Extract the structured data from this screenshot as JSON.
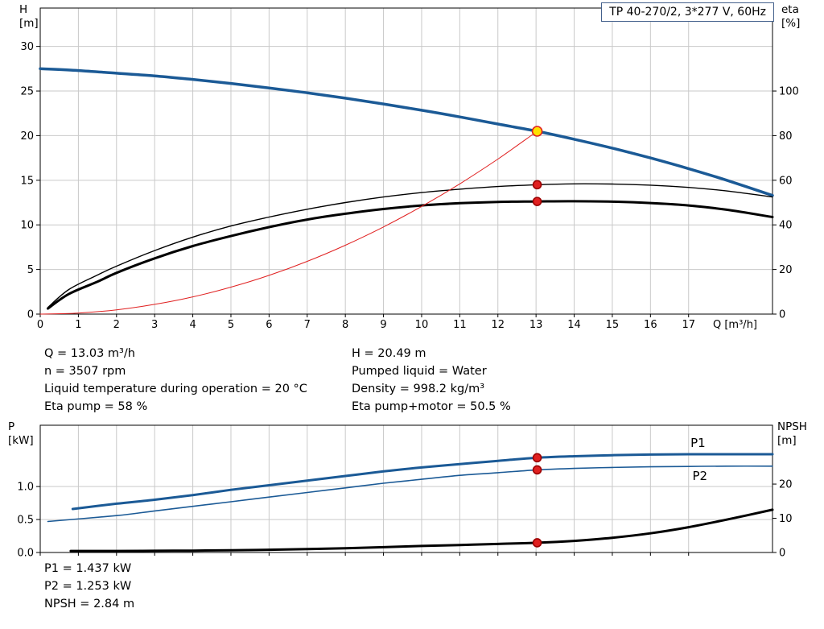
{
  "title_box": "TP 40-270/2, 3*277 V, 60Hz",
  "info": {
    "operating_point": {
      "q": "Q = 13.03 m³/h",
      "n": "n = 3507 rpm",
      "liquid_temp": "Liquid temperature during operation = 20 °C",
      "eta_pump": "Eta pump = 58 %",
      "h": "H = 20.49 m",
      "pumped_liquid": "Pumped liquid = Water",
      "density": "Density = 998.2 kg/m³",
      "eta_pump_motor": "Eta pump+motor = 50.5 %"
    },
    "power": {
      "p1": "P1 = 1.437 kW",
      "p2": "P2 = 1.253 kW",
      "npsh": "NPSH = 2.84 m"
    }
  },
  "chart_data": [
    {
      "type": "line",
      "title": "TP 40-270/2, 3*277 V, 60Hz",
      "x": {
        "label": "Q [m³/h]",
        "min": 0,
        "max": 19.2,
        "ticks": [
          0,
          1,
          2,
          3,
          4,
          5,
          6,
          7,
          8,
          9,
          10,
          11,
          12,
          13,
          14,
          15,
          16,
          17
        ],
        "tick_labels": [
          "0",
          "1",
          "2",
          "3",
          "4",
          "5",
          "6",
          "7",
          "8",
          "9",
          "10",
          "11",
          "12",
          "13",
          "14",
          "15",
          "16",
          "17"
        ]
      },
      "y_left": {
        "name": "H",
        "unit": "[m]",
        "min": 0,
        "max": 34.3,
        "ticks": [
          0,
          5,
          10,
          15,
          20,
          25,
          30
        ],
        "tick_labels": [
          "0",
          "5",
          "10",
          "15",
          "20",
          "25",
          "30"
        ]
      },
      "y_right": {
        "name": "eta",
        "unit": "[%]",
        "min": 0,
        "max": 137.2,
        "ticks": [
          0,
          20,
          40,
          60,
          80,
          100
        ],
        "tick_labels": [
          "0",
          "20",
          "40",
          "60",
          "80",
          "100"
        ]
      },
      "grid": true,
      "series": [
        {
          "id": "head-curve",
          "name": "H",
          "axis": "left",
          "color": "#1b5a96",
          "width": 3.5,
          "points": [
            [
              0,
              27.5
            ],
            [
              1,
              27.3
            ],
            [
              2,
              27.0
            ],
            [
              3,
              26.7
            ],
            [
              4,
              26.3
            ],
            [
              5,
              25.85
            ],
            [
              6,
              25.35
            ],
            [
              7,
              24.8
            ],
            [
              8,
              24.2
            ],
            [
              9,
              23.55
            ],
            [
              10,
              22.85
            ],
            [
              11,
              22.1
            ],
            [
              12,
              21.3
            ],
            [
              13.03,
              20.49
            ],
            [
              14,
              19.6
            ],
            [
              15,
              18.6
            ],
            [
              16,
              17.5
            ],
            [
              17,
              16.3
            ],
            [
              18,
              15.0
            ],
            [
              19.2,
              13.3
            ]
          ]
        },
        {
          "id": "eta-pump-curve",
          "name": "Eta pump",
          "axis": "right",
          "color": "#000000",
          "width": 1.4,
          "points": [
            [
              0.2,
              3
            ],
            [
              0.75,
              11
            ],
            [
              1.5,
              17.5
            ],
            [
              2,
              21.5
            ],
            [
              3,
              28.5
            ],
            [
              4,
              34.5
            ],
            [
              5,
              39.5
            ],
            [
              6,
              43.5
            ],
            [
              7,
              47
            ],
            [
              8,
              50
            ],
            [
              9,
              52.5
            ],
            [
              10,
              54.5
            ],
            [
              11,
              56
            ],
            [
              12,
              57.2
            ],
            [
              13.03,
              58
            ],
            [
              14,
              58.4
            ],
            [
              15,
              58.3
            ],
            [
              16,
              57.8
            ],
            [
              17,
              56.8
            ],
            [
              18,
              55.2
            ],
            [
              19.2,
              52.5
            ]
          ]
        },
        {
          "id": "eta-pump-motor-curve",
          "name": "Eta pump+motor",
          "axis": "right",
          "color": "#000000",
          "width": 3,
          "points": [
            [
              0.2,
              2.5
            ],
            [
              0.75,
              9
            ],
            [
              1.5,
              14.5
            ],
            [
              2,
              18.5
            ],
            [
              3,
              25
            ],
            [
              4,
              30.5
            ],
            [
              5,
              35
            ],
            [
              6,
              39
            ],
            [
              7,
              42.4
            ],
            [
              8,
              45
            ],
            [
              9,
              47.1
            ],
            [
              10,
              48.7
            ],
            [
              11,
              49.7
            ],
            [
              12,
              50.3
            ],
            [
              13.03,
              50.5
            ],
            [
              14,
              50.6
            ],
            [
              15,
              50.4
            ],
            [
              16,
              49.8
            ],
            [
              17,
              48.7
            ],
            [
              18,
              46.8
            ],
            [
              19.2,
              43.5
            ]
          ]
        },
        {
          "id": "system-curve",
          "name": "System curve",
          "axis": "left",
          "color": "#e02020",
          "width": 1,
          "points": [
            [
              0,
              0
            ],
            [
              1,
              0.12
            ],
            [
              2,
              0.48
            ],
            [
              3,
              1.09
            ],
            [
              4,
              1.93
            ],
            [
              5,
              3.02
            ],
            [
              6,
              4.34
            ],
            [
              7,
              5.91
            ],
            [
              8,
              7.72
            ],
            [
              9,
              9.77
            ],
            [
              10,
              12.07
            ],
            [
              11,
              14.6
            ],
            [
              12,
              17.38
            ],
            [
              13.03,
              20.49
            ]
          ]
        }
      ],
      "markers": [
        {
          "name": "duty-point-head",
          "x": 13.03,
          "v": 20.49,
          "axis": "left",
          "fill": "#ffe100",
          "stroke": "#e02020",
          "r": 6
        },
        {
          "name": "duty-point-eta-pump",
          "x": 13.03,
          "v": 58,
          "axis": "right",
          "fill": "#e02020",
          "stroke": "#9b0000",
          "r": 5
        },
        {
          "name": "duty-point-eta-pump-motor",
          "x": 13.03,
          "v": 50.5,
          "axis": "right",
          "fill": "#e02020",
          "stroke": "#9b0000",
          "r": 5
        }
      ]
    },
    {
      "type": "line",
      "x": {
        "min": 0,
        "max": 19.2,
        "ticks": [
          0,
          1,
          2,
          3,
          4,
          5,
          6,
          7,
          8,
          9,
          10,
          11,
          12,
          13,
          14,
          15,
          16,
          17
        ]
      },
      "y_left": {
        "name": "P",
        "unit": "[kW]",
        "min": 0,
        "max": 1.93,
        "ticks": [
          0,
          0.5,
          1
        ],
        "tick_labels": [
          "0.0",
          "0.5",
          "1.0"
        ]
      },
      "y_right": {
        "name": "NPSH",
        "unit": "[m]",
        "min": 0,
        "max": 37.2,
        "ticks": [
          0,
          10,
          20
        ],
        "tick_labels": [
          "0",
          "10",
          "20"
        ]
      },
      "grid": true,
      "series": [
        {
          "id": "p1-curve",
          "name": "P1",
          "axis": "left",
          "color": "#1b5a96",
          "width": 3,
          "label_pos": [
            17.05,
            1.6
          ],
          "points": [
            [
              0.85,
              0.66
            ],
            [
              2,
              0.74
            ],
            [
              3,
              0.8
            ],
            [
              4,
              0.87
            ],
            [
              5,
              0.95
            ],
            [
              6,
              1.02
            ],
            [
              7,
              1.09
            ],
            [
              8,
              1.16
            ],
            [
              9,
              1.23
            ],
            [
              10,
              1.29
            ],
            [
              11,
              1.34
            ],
            [
              12,
              1.39
            ],
            [
              13.03,
              1.437
            ],
            [
              14,
              1.46
            ],
            [
              15,
              1.475
            ],
            [
              16,
              1.485
            ],
            [
              17,
              1.49
            ],
            [
              18,
              1.49
            ],
            [
              19.2,
              1.49
            ]
          ]
        },
        {
          "id": "p2-curve",
          "name": "P2",
          "axis": "left",
          "color": "#1b5a96",
          "width": 1.6,
          "label_pos": [
            17.1,
            1.1
          ],
          "points": [
            [
              0.2,
              0.47
            ],
            [
              2,
              0.56
            ],
            [
              3,
              0.63
            ],
            [
              4,
              0.7
            ],
            [
              5,
              0.77
            ],
            [
              6,
              0.84
            ],
            [
              7,
              0.91
            ],
            [
              8,
              0.98
            ],
            [
              9,
              1.05
            ],
            [
              10,
              1.11
            ],
            [
              11,
              1.17
            ],
            [
              12,
              1.21
            ],
            [
              13.03,
              1.253
            ],
            [
              14,
              1.275
            ],
            [
              15,
              1.29
            ],
            [
              16,
              1.3
            ],
            [
              17,
              1.305
            ],
            [
              18,
              1.31
            ],
            [
              19.2,
              1.31
            ]
          ]
        },
        {
          "id": "npsh-curve",
          "name": "NPSH",
          "axis": "right",
          "color": "#000000",
          "width": 3,
          "points": [
            [
              0.8,
              0.45
            ],
            [
              2,
              0.45
            ],
            [
              3,
              0.5
            ],
            [
              4,
              0.55
            ],
            [
              5,
              0.65
            ],
            [
              6,
              0.8
            ],
            [
              7,
              1.0
            ],
            [
              8,
              1.25
            ],
            [
              9,
              1.55
            ],
            [
              10,
              1.9
            ],
            [
              11,
              2.2
            ],
            [
              12,
              2.5
            ],
            [
              13.03,
              2.84
            ],
            [
              14,
              3.4
            ],
            [
              15,
              4.3
            ],
            [
              16,
              5.6
            ],
            [
              17,
              7.4
            ],
            [
              18,
              9.6
            ],
            [
              19.2,
              12.5
            ]
          ]
        }
      ],
      "markers": [
        {
          "name": "duty-point-p1",
          "x": 13.03,
          "v": 1.437,
          "axis": "left",
          "fill": "#e02020",
          "stroke": "#9b0000",
          "r": 5
        },
        {
          "name": "duty-point-p2",
          "x": 13.03,
          "v": 1.253,
          "axis": "left",
          "fill": "#e02020",
          "stroke": "#9b0000",
          "r": 5
        },
        {
          "name": "duty-point-npsh",
          "x": 13.03,
          "v": 2.84,
          "axis": "right",
          "fill": "#e02020",
          "stroke": "#9b0000",
          "r": 5
        }
      ]
    }
  ]
}
